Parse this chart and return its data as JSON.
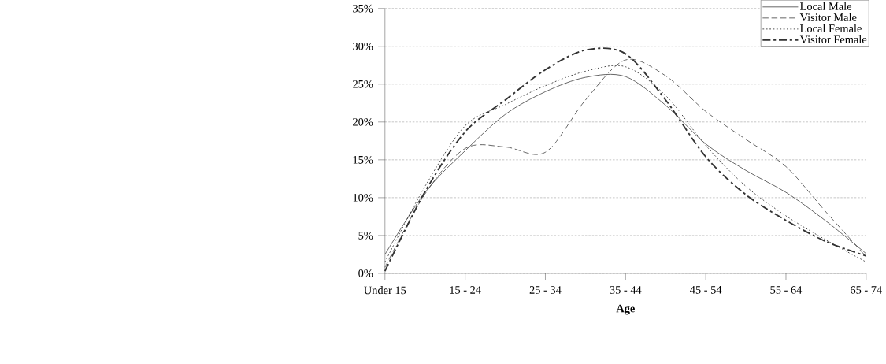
{
  "chart_data": {
    "type": "line",
    "xlabel": "Age",
    "categories": [
      "Under 15",
      null,
      "15 - 24",
      null,
      "25 - 34",
      null,
      "35 - 44",
      null,
      "45 - 54",
      null,
      "55 - 64",
      null,
      "65 - 74"
    ],
    "series": [
      {
        "name": "Local Male",
        "color": "#333333",
        "line_style": "solid",
        "values": [
          2.5,
          10.7,
          16.2,
          21.0,
          24.0,
          25.9,
          26.0,
          22.2,
          17.1,
          13.6,
          10.7,
          6.9,
          2.6
        ]
      },
      {
        "name": "Visitor Male",
        "color": "#333333",
        "line_style": "dashed",
        "values": [
          0.8,
          10.5,
          16.5,
          16.7,
          16.0,
          22.9,
          28.2,
          26.1,
          21.4,
          17.7,
          14.1,
          8.1,
          2.2
        ]
      },
      {
        "name": "Local Female",
        "color": "#333333",
        "line_style": "dotted",
        "values": [
          1.5,
          11.5,
          19.5,
          22.3,
          24.8,
          26.7,
          27.3,
          23.5,
          16.9,
          11.5,
          7.6,
          4.4,
          1.5
        ]
      },
      {
        "name": "Visitor Female",
        "color": "#333333",
        "line_style": "dashdot",
        "values": [
          0.3,
          10.8,
          18.7,
          22.9,
          26.9,
          29.5,
          29.0,
          22.9,
          15.4,
          10.4,
          7.0,
          4.2,
          2.3
        ]
      }
    ],
    "ylim": [
      0,
      35
    ],
    "yticks": [
      {
        "value": 0,
        "label": "0%"
      },
      {
        "value": 5,
        "label": "5%"
      },
      {
        "value": 10,
        "label": "10%"
      },
      {
        "value": 15,
        "label": "15%"
      },
      {
        "value": 20,
        "label": "20%"
      },
      {
        "value": 25,
        "label": "25%"
      },
      {
        "value": 30,
        "label": "30%"
      },
      {
        "value": 35,
        "label": "35%"
      }
    ],
    "grid": "y",
    "legend": "top right",
    "marker": "none"
  }
}
